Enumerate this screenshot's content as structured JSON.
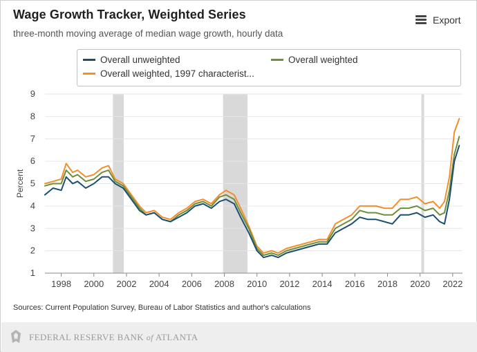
{
  "header": {
    "title": "Wage Growth Tracker, Weighted Series",
    "subtitle": "three-month moving average of median wage growth, hourly data",
    "export_label": "Export"
  },
  "footer": {
    "source": "Sources: Current Population Survey, Bureau of Labor Statistics and author's calculations",
    "logo_text": "FEDERAL RESERVE BANK of ATLANTA"
  },
  "colors": {
    "unweighted": "#1b4f72",
    "weighted": "#6e8f3a",
    "weighted_1997": "#f28e2b",
    "recession": "#d9d9d9",
    "grid": "#e6e6e6"
  },
  "chart_data": {
    "type": "line",
    "title": "Wage Growth Tracker, Weighted Series",
    "subtitle": "three-month moving average of median wage growth, hourly data",
    "xlabel": "",
    "ylabel": "Percent",
    "xlim": [
      1997.0,
      2022.6
    ],
    "ylim": [
      1,
      9
    ],
    "yticks": [
      1,
      2,
      3,
      4,
      5,
      6,
      7,
      8,
      9
    ],
    "xticks": [
      1998,
      2000,
      2002,
      2004,
      2006,
      2008,
      2010,
      2012,
      2014,
      2016,
      2018,
      2020,
      2022
    ],
    "grid": true,
    "legend_position": "top",
    "recessions": [
      [
        2001.17,
        2001.83
      ],
      [
        2007.92,
        2009.42
      ],
      [
        2020.08,
        2020.25
      ]
    ],
    "x": [
      1997.0,
      1997.5,
      1998.0,
      1998.3,
      1998.7,
      1999.0,
      1999.5,
      2000.0,
      2000.5,
      2000.9,
      2001.3,
      2001.8,
      2002.3,
      2002.8,
      2003.2,
      2003.7,
      2004.2,
      2004.7,
      2005.2,
      2005.7,
      2006.2,
      2006.7,
      2007.2,
      2007.7,
      2008.1,
      2008.6,
      2009.0,
      2009.5,
      2010.0,
      2010.4,
      2010.9,
      2011.3,
      2011.8,
      2012.3,
      2012.8,
      2013.3,
      2013.8,
      2014.3,
      2014.8,
      2015.3,
      2015.8,
      2016.3,
      2016.8,
      2017.3,
      2017.8,
      2018.3,
      2018.8,
      2019.3,
      2019.8,
      2020.3,
      2020.8,
      2021.2,
      2021.5,
      2021.8,
      2022.1,
      2022.4
    ],
    "series": [
      {
        "name": "Overall unweighted",
        "values": [
          4.5,
          4.8,
          4.7,
          5.3,
          5.0,
          5.1,
          4.8,
          5.0,
          5.3,
          5.3,
          5.0,
          4.8,
          4.3,
          3.8,
          3.6,
          3.7,
          3.4,
          3.3,
          3.5,
          3.7,
          4.0,
          4.1,
          3.9,
          4.2,
          4.3,
          4.1,
          3.5,
          2.8,
          2.0,
          1.7,
          1.8,
          1.7,
          1.9,
          2.0,
          2.1,
          2.2,
          2.3,
          2.3,
          2.8,
          3.0,
          3.2,
          3.5,
          3.4,
          3.4,
          3.3,
          3.2,
          3.6,
          3.6,
          3.7,
          3.5,
          3.6,
          3.3,
          3.2,
          4.3,
          6.0,
          6.7
        ]
      },
      {
        "name": "Overall weighted",
        "values": [
          4.9,
          5.0,
          5.0,
          5.6,
          5.3,
          5.4,
          5.1,
          5.2,
          5.5,
          5.6,
          5.1,
          4.9,
          4.4,
          3.9,
          3.6,
          3.7,
          3.4,
          3.3,
          3.6,
          3.8,
          4.1,
          4.2,
          4.0,
          4.4,
          4.5,
          4.3,
          3.7,
          3.0,
          2.1,
          1.8,
          1.9,
          1.8,
          2.0,
          2.1,
          2.2,
          2.3,
          2.4,
          2.4,
          3.0,
          3.2,
          3.4,
          3.8,
          3.7,
          3.7,
          3.6,
          3.6,
          3.9,
          3.9,
          4.0,
          3.8,
          3.9,
          3.6,
          3.7,
          4.7,
          6.3,
          7.1
        ]
      },
      {
        "name": "Overall weighted, 1997 characterist...",
        "values": [
          5.0,
          5.1,
          5.2,
          5.9,
          5.5,
          5.6,
          5.3,
          5.4,
          5.7,
          5.8,
          5.2,
          5.0,
          4.5,
          4.0,
          3.7,
          3.8,
          3.5,
          3.4,
          3.7,
          3.9,
          4.2,
          4.3,
          4.1,
          4.5,
          4.7,
          4.5,
          3.9,
          3.1,
          2.2,
          1.9,
          2.0,
          1.9,
          2.1,
          2.2,
          2.3,
          2.4,
          2.5,
          2.5,
          3.2,
          3.4,
          3.6,
          4.0,
          4.0,
          4.0,
          3.9,
          3.9,
          4.3,
          4.3,
          4.4,
          4.1,
          4.2,
          3.9,
          4.2,
          5.3,
          7.3,
          7.9
        ]
      }
    ]
  }
}
